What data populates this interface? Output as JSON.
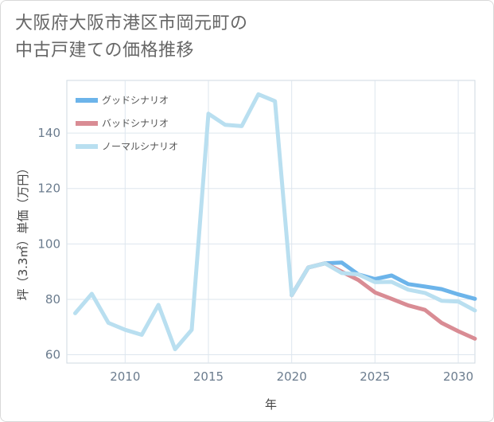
{
  "title_line1": "大阪府大阪市港区市岡元町の",
  "title_line2": "中古戸建ての価格推移",
  "chart_data": {
    "type": "line",
    "title": "大阪府大阪市港区市岡元町の中古戸建ての価格推移",
    "xlabel": "年",
    "ylabel": "坪（3.3㎡）単価（万円）",
    "xlim": [
      2006.5,
      2031
    ],
    "ylim": [
      57,
      159
    ],
    "xticks": [
      2010,
      2015,
      2020,
      2025,
      2030
    ],
    "yticks": [
      60,
      80,
      100,
      120,
      140
    ],
    "grid": true,
    "legend_position": "top-left",
    "series": [
      {
        "name": "グッドシナリオ",
        "color": "#6cb4ea",
        "x": [
          2020,
          2021,
          2022,
          2023,
          2024,
          2025,
          2026,
          2027,
          2028,
          2029,
          2030,
          2031
        ],
        "values": [
          81.5,
          91.5,
          93,
          93.3,
          89,
          87.3,
          88.6,
          85.5,
          84.6,
          83.7,
          81.8,
          80.2
        ]
      },
      {
        "name": "バッドシナリオ",
        "color": "#d98c94",
        "x": [
          2020,
          2021,
          2022,
          2023,
          2024,
          2025,
          2026,
          2027,
          2028,
          2029,
          2030,
          2031
        ],
        "values": [
          81.5,
          91.5,
          93,
          90,
          87,
          82.5,
          80.2,
          77.8,
          76.2,
          71.5,
          68.5,
          65.8
        ]
      },
      {
        "name": "ノーマルシナリオ",
        "color": "#b9dff0",
        "x": [
          2007,
          2008,
          2009,
          2010,
          2011,
          2012,
          2013,
          2014,
          2015,
          2016,
          2017,
          2018,
          2019,
          2020,
          2021,
          2022,
          2023,
          2024,
          2025,
          2026,
          2027,
          2028,
          2029,
          2030,
          2031
        ],
        "values": [
          75,
          82,
          71.5,
          69,
          67.2,
          78,
          62,
          69,
          147,
          143,
          142.5,
          154,
          151.5,
          81.5,
          91.5,
          93,
          89.5,
          89,
          86.2,
          86.3,
          83.5,
          82.3,
          79.5,
          79.2,
          76
        ]
      }
    ]
  }
}
